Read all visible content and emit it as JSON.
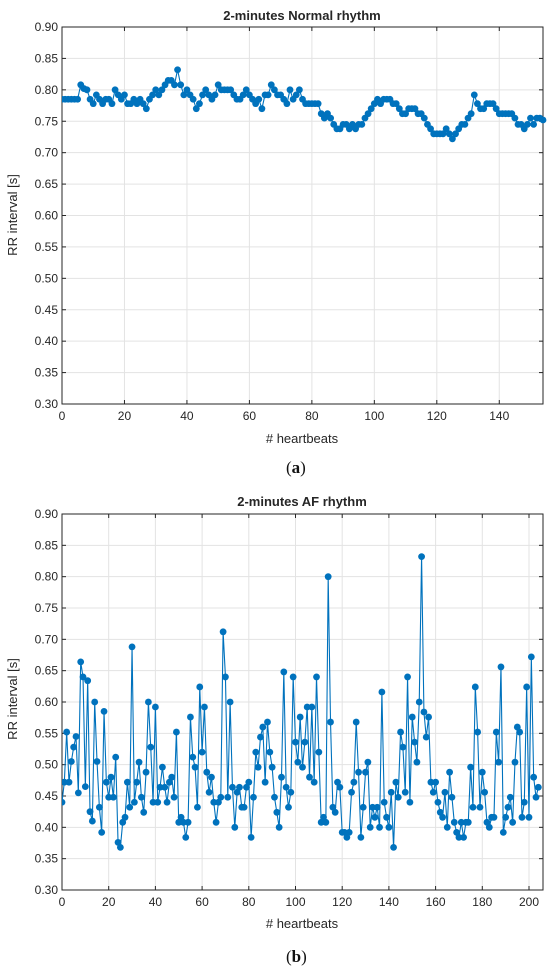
{
  "chart_data": [
    {
      "type": "line",
      "title": "2-minutes Normal rhythm",
      "xlabel": "# heartbeats",
      "ylabel": "RR interval [s]",
      "xlim": [
        0,
        154
      ],
      "ylim": [
        0.3,
        0.9
      ],
      "xticks": [
        0,
        20,
        40,
        60,
        80,
        100,
        120,
        140
      ],
      "yticks": [
        0.3,
        0.35,
        0.4,
        0.45,
        0.5,
        0.55,
        0.6,
        0.65,
        0.7,
        0.75,
        0.8,
        0.85,
        0.9
      ],
      "grid": true,
      "color": "#0072BD",
      "caption": {
        "open": "(",
        "letter": "a",
        "close": ")"
      },
      "series": [
        {
          "x_start": 0,
          "values": [
            0.785,
            0.785,
            0.785,
            0.785,
            0.785,
            0.785,
            0.808,
            0.802,
            0.8,
            0.785,
            0.778,
            0.792,
            0.785,
            0.778,
            0.785,
            0.785,
            0.778,
            0.8,
            0.792,
            0.785,
            0.792,
            0.778,
            0.778,
            0.785,
            0.778,
            0.785,
            0.778,
            0.77,
            0.785,
            0.792,
            0.8,
            0.792,
            0.8,
            0.808,
            0.815,
            0.815,
            0.808,
            0.832,
            0.808,
            0.792,
            0.8,
            0.792,
            0.785,
            0.77,
            0.778,
            0.792,
            0.8,
            0.792,
            0.785,
            0.792,
            0.808,
            0.8,
            0.8,
            0.8,
            0.8,
            0.792,
            0.785,
            0.785,
            0.792,
            0.8,
            0.792,
            0.785,
            0.778,
            0.785,
            0.77,
            0.792,
            0.792,
            0.808,
            0.8,
            0.792,
            0.792,
            0.785,
            0.778,
            0.8,
            0.785,
            0.792,
            0.8,
            0.785,
            0.778,
            0.778,
            0.778,
            0.778,
            0.778,
            0.762,
            0.755,
            0.762,
            0.755,
            0.745,
            0.738,
            0.738,
            0.745,
            0.745,
            0.738,
            0.745,
            0.738,
            0.745,
            0.745,
            0.755,
            0.762,
            0.77,
            0.778,
            0.785,
            0.778,
            0.785,
            0.785,
            0.785,
            0.778,
            0.778,
            0.77,
            0.762,
            0.762,
            0.77,
            0.77,
            0.77,
            0.762,
            0.762,
            0.755,
            0.745,
            0.738,
            0.73,
            0.73,
            0.73,
            0.73,
            0.738,
            0.73,
            0.722,
            0.73,
            0.738,
            0.745,
            0.745,
            0.755,
            0.762,
            0.792,
            0.778,
            0.77,
            0.77,
            0.778,
            0.778,
            0.778,
            0.77,
            0.762,
            0.762,
            0.762,
            0.762,
            0.762,
            0.755,
            0.745,
            0.745,
            0.738,
            0.745,
            0.755,
            0.745,
            0.755,
            0.755,
            0.752
          ]
        }
      ]
    },
    {
      "type": "line",
      "title": "2-minutes AF rhythm",
      "xlabel": "# heartbeats",
      "ylabel": "RR interval [s]",
      "xlim": [
        0,
        206
      ],
      "ylim": [
        0.3,
        0.9
      ],
      "xticks": [
        0,
        20,
        40,
        60,
        80,
        100,
        120,
        140,
        160,
        180,
        200
      ],
      "yticks": [
        0.3,
        0.35,
        0.4,
        0.45,
        0.5,
        0.55,
        0.6,
        0.65,
        0.7,
        0.75,
        0.8,
        0.85,
        0.9
      ],
      "grid": true,
      "color": "#0072BD",
      "caption": {
        "open": "(",
        "letter": "b",
        "close": ")"
      },
      "series": [
        {
          "x_start": 0,
          "values": [
            0.44,
            0.472,
            0.552,
            0.472,
            0.505,
            0.528,
            0.545,
            0.455,
            0.664,
            0.64,
            0.465,
            0.634,
            0.425,
            0.41,
            0.6,
            0.505,
            0.432,
            0.392,
            0.585,
            0.472,
            0.448,
            0.48,
            0.448,
            0.512,
            0.376,
            0.368,
            0.408,
            0.416,
            0.472,
            0.432,
            0.688,
            0.44,
            0.472,
            0.504,
            0.448,
            0.424,
            0.488,
            0.6,
            0.528,
            0.44,
            0.592,
            0.44,
            0.464,
            0.496,
            0.464,
            0.44,
            0.472,
            0.48,
            0.448,
            0.552,
            0.408,
            0.416,
            0.408,
            0.384,
            0.408,
            0.576,
            0.512,
            0.496,
            0.432,
            0.624,
            0.52,
            0.592,
            0.488,
            0.456,
            0.48,
            0.44,
            0.408,
            0.44,
            0.448,
            0.712,
            0.64,
            0.448,
            0.6,
            0.464,
            0.4,
            0.456,
            0.464,
            0.432,
            0.432,
            0.464,
            0.472,
            0.384,
            0.448,
            0.52,
            0.496,
            0.544,
            0.56,
            0.472,
            0.568,
            0.52,
            0.496,
            0.448,
            0.424,
            0.4,
            0.48,
            0.648,
            0.464,
            0.432,
            0.456,
            0.64,
            0.536,
            0.504,
            0.576,
            0.496,
            0.536,
            0.592,
            0.48,
            0.592,
            0.472,
            0.64,
            0.52,
            0.408,
            0.416,
            0.408,
            0.8,
            0.568,
            0.432,
            0.424,
            0.472,
            0.464,
            0.392,
            0.392,
            0.384,
            0.392,
            0.456,
            0.472,
            0.568,
            0.488,
            0.384,
            0.432,
            0.488,
            0.504,
            0.4,
            0.432,
            0.416,
            0.432,
            0.4,
            0.616,
            0.44,
            0.416,
            0.4,
            0.456,
            0.368,
            0.472,
            0.448,
            0.552,
            0.528,
            0.456,
            0.64,
            0.44,
            0.576,
            0.536,
            0.504,
            0.6,
            0.832,
            0.584,
            0.544,
            0.576,
            0.472,
            0.456,
            0.472,
            0.44,
            0.424,
            0.416,
            0.456,
            0.4,
            0.488,
            0.448,
            0.408,
            0.392,
            0.384,
            0.408,
            0.384,
            0.408,
            0.408,
            0.496,
            0.432,
            0.624,
            0.552,
            0.432,
            0.488,
            0.456,
            0.408,
            0.4,
            0.416,
            0.416,
            0.552,
            0.504,
            0.656,
            0.392,
            0.416,
            0.432,
            0.448,
            0.408,
            0.504,
            0.56,
            0.552,
            0.416,
            0.44,
            0.624,
            0.416,
            0.672,
            0.48,
            0.448,
            0.464
          ]
        }
      ]
    }
  ]
}
